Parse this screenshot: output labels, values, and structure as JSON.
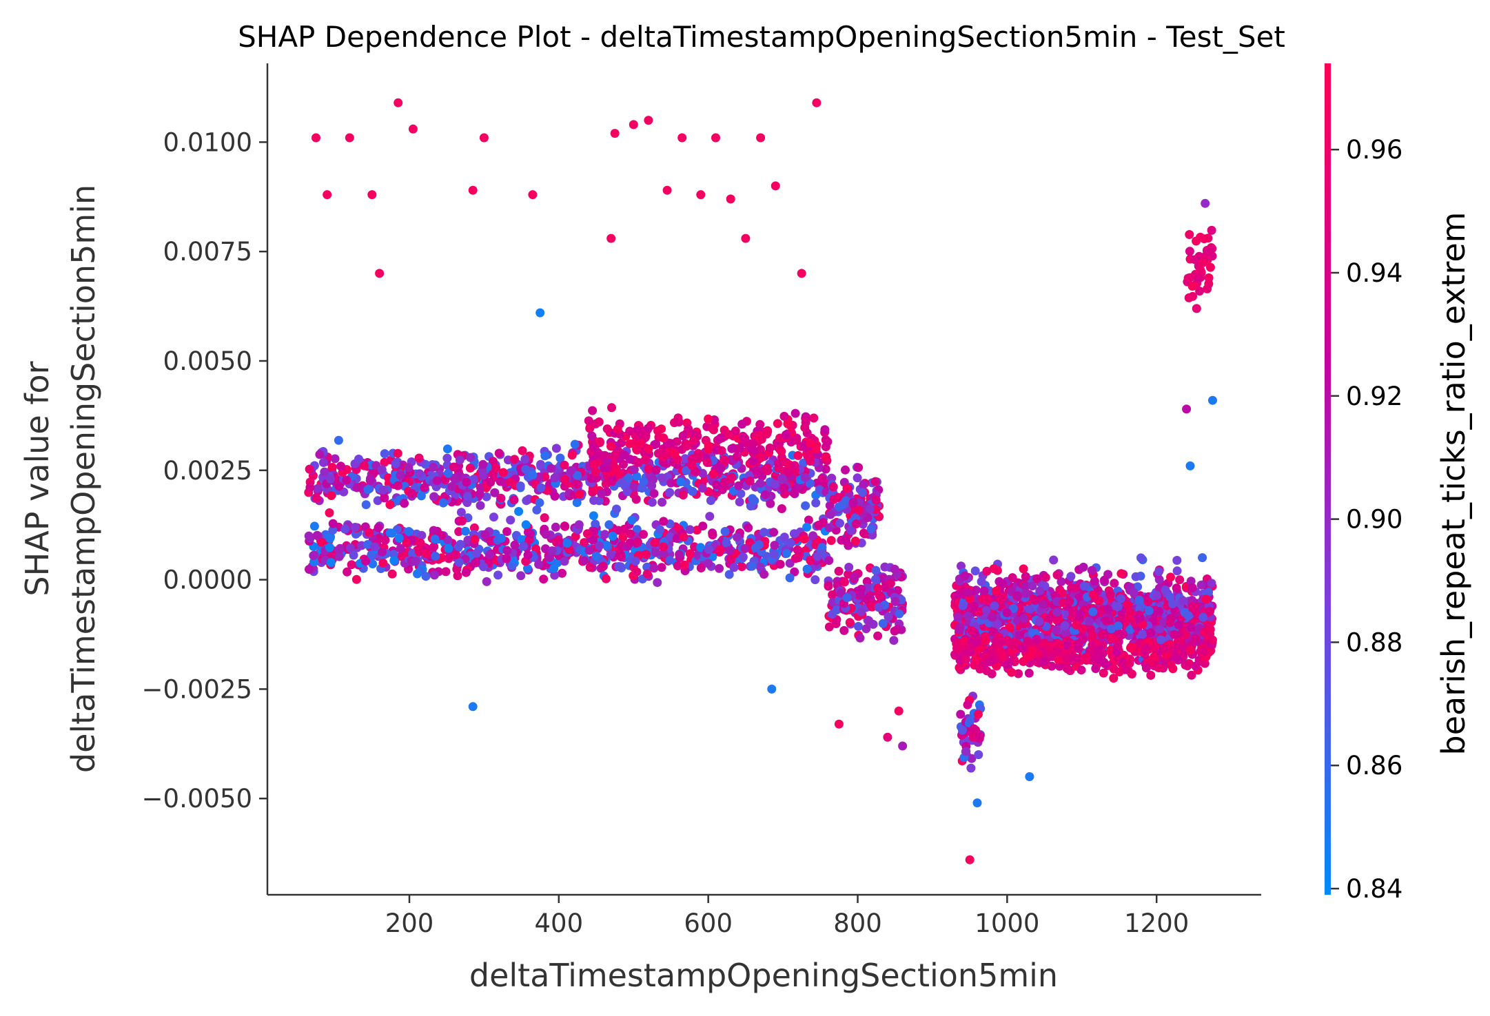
{
  "chart_data": {
    "type": "scatter",
    "title": "SHAP Dependence Plot - deltaTimestampOpeningSection5min - Test_Set",
    "xlabel": "deltaTimestampOpeningSection5min",
    "ylabel_lines": [
      "SHAP value for",
      "deltaTimestampOpeningSection5min"
    ],
    "xlim": [
      10,
      1340
    ],
    "ylim": [
      -0.0072,
      0.0118
    ],
    "x_ticks": [
      200,
      400,
      600,
      800,
      1000,
      1200
    ],
    "x_tick_labels": [
      "200",
      "400",
      "600",
      "800",
      "1000",
      "1200"
    ],
    "y_ticks": [
      -0.005,
      -0.0025,
      0.0,
      0.0025,
      0.005,
      0.0075,
      0.01
    ],
    "y_tick_labels": [
      "−0.0050",
      "−0.0025",
      "0.0000",
      "0.0025",
      "0.0050",
      "0.0075",
      "0.0100"
    ],
    "grid": false,
    "colorbar": {
      "label": "bearish_repeat_ticks_ratio_extrem",
      "range": [
        0.839,
        0.974
      ],
      "ticks": [
        0.84,
        0.86,
        0.88,
        0.9,
        0.92,
        0.94,
        0.96
      ],
      "tick_labels": [
        "0.84",
        "0.86",
        "0.88",
        "0.90",
        "0.92",
        "0.94",
        "0.96"
      ],
      "colors": [
        "#008afb",
        "#7a3fdd",
        "#c9009c",
        "#ff0052"
      ]
    },
    "clusters": [
      {
        "x_range": [
          65,
          760
        ],
        "y_center": 0.0023,
        "y_spread": 0.0006,
        "count": 750,
        "color_range": [
          0.85,
          0.97
        ]
      },
      {
        "x_range": [
          65,
          760
        ],
        "y_center": 0.0007,
        "y_spread": 0.0006,
        "count": 750,
        "color_range": [
          0.845,
          0.97
        ]
      },
      {
        "x_range": [
          440,
          760
        ],
        "y_center": 0.0031,
        "y_spread": 0.0006,
        "count": 260,
        "color_range": [
          0.92,
          0.97
        ]
      },
      {
        "x_range": [
          760,
          830
        ],
        "y_center": 0.0017,
        "y_spread": 0.0008,
        "count": 120,
        "color_range": [
          0.86,
          0.97
        ]
      },
      {
        "x_range": [
          760,
          860
        ],
        "y_center": -0.0004,
        "y_spread": 0.0008,
        "count": 170,
        "color_range": [
          0.86,
          0.97
        ]
      },
      {
        "x_range": [
          930,
          1275
        ],
        "y_center": -0.0008,
        "y_spread": 0.0009,
        "count": 1300,
        "color_range": [
          0.86,
          0.97
        ]
      },
      {
        "x_range": [
          930,
          1275
        ],
        "y_center": -0.0017,
        "y_spread": 0.0004,
        "count": 350,
        "color_range": [
          0.93,
          0.97
        ]
      },
      {
        "x_range": [
          935,
          965
        ],
        "y_center": -0.0035,
        "y_spread": 0.0008,
        "count": 45,
        "color_range": [
          0.85,
          0.97
        ]
      },
      {
        "x_range": [
          1240,
          1275
        ],
        "y_center": 0.0072,
        "y_spread": 0.0008,
        "count": 40,
        "color_range": [
          0.94,
          0.97
        ]
      }
    ],
    "outliers": [
      {
        "x": 75,
        "y": 0.0101,
        "c": 0.965
      },
      {
        "x": 90,
        "y": 0.0088,
        "c": 0.965
      },
      {
        "x": 120,
        "y": 0.0101,
        "c": 0.965
      },
      {
        "x": 150,
        "y": 0.0088,
        "c": 0.965
      },
      {
        "x": 160,
        "y": 0.007,
        "c": 0.965
      },
      {
        "x": 185,
        "y": 0.0109,
        "c": 0.965
      },
      {
        "x": 205,
        "y": 0.0103,
        "c": 0.965
      },
      {
        "x": 285,
        "y": 0.0089,
        "c": 0.965
      },
      {
        "x": 300,
        "y": 0.0101,
        "c": 0.965
      },
      {
        "x": 365,
        "y": 0.0088,
        "c": 0.965
      },
      {
        "x": 375,
        "y": 0.0061,
        "c": 0.845
      },
      {
        "x": 470,
        "y": 0.0078,
        "c": 0.965
      },
      {
        "x": 475,
        "y": 0.0102,
        "c": 0.965
      },
      {
        "x": 500,
        "y": 0.0104,
        "c": 0.965
      },
      {
        "x": 520,
        "y": 0.0105,
        "c": 0.965
      },
      {
        "x": 545,
        "y": 0.0089,
        "c": 0.965
      },
      {
        "x": 565,
        "y": 0.0101,
        "c": 0.965
      },
      {
        "x": 590,
        "y": 0.0088,
        "c": 0.965
      },
      {
        "x": 610,
        "y": 0.0101,
        "c": 0.965
      },
      {
        "x": 630,
        "y": 0.0087,
        "c": 0.965
      },
      {
        "x": 650,
        "y": 0.0078,
        "c": 0.965
      },
      {
        "x": 670,
        "y": 0.0101,
        "c": 0.965
      },
      {
        "x": 690,
        "y": 0.009,
        "c": 0.965
      },
      {
        "x": 725,
        "y": 0.007,
        "c": 0.965
      },
      {
        "x": 745,
        "y": 0.0109,
        "c": 0.965
      },
      {
        "x": 285,
        "y": -0.0029,
        "c": 0.85
      },
      {
        "x": 685,
        "y": -0.0025,
        "c": 0.85
      },
      {
        "x": 775,
        "y": -0.0033,
        "c": 0.965
      },
      {
        "x": 840,
        "y": -0.0036,
        "c": 0.95
      },
      {
        "x": 855,
        "y": -0.003,
        "c": 0.965
      },
      {
        "x": 860,
        "y": -0.0038,
        "c": 0.91
      },
      {
        "x": 950,
        "y": -0.0064,
        "c": 0.965
      },
      {
        "x": 960,
        "y": -0.0051,
        "c": 0.85
      },
      {
        "x": 1030,
        "y": -0.0045,
        "c": 0.85
      },
      {
        "x": 1265,
        "y": 0.0086,
        "c": 0.9
      },
      {
        "x": 1275,
        "y": 0.0041,
        "c": 0.85
      },
      {
        "x": 1240,
        "y": 0.0039,
        "c": 0.92
      },
      {
        "x": 1245,
        "y": 0.0026,
        "c": 0.85
      }
    ]
  }
}
